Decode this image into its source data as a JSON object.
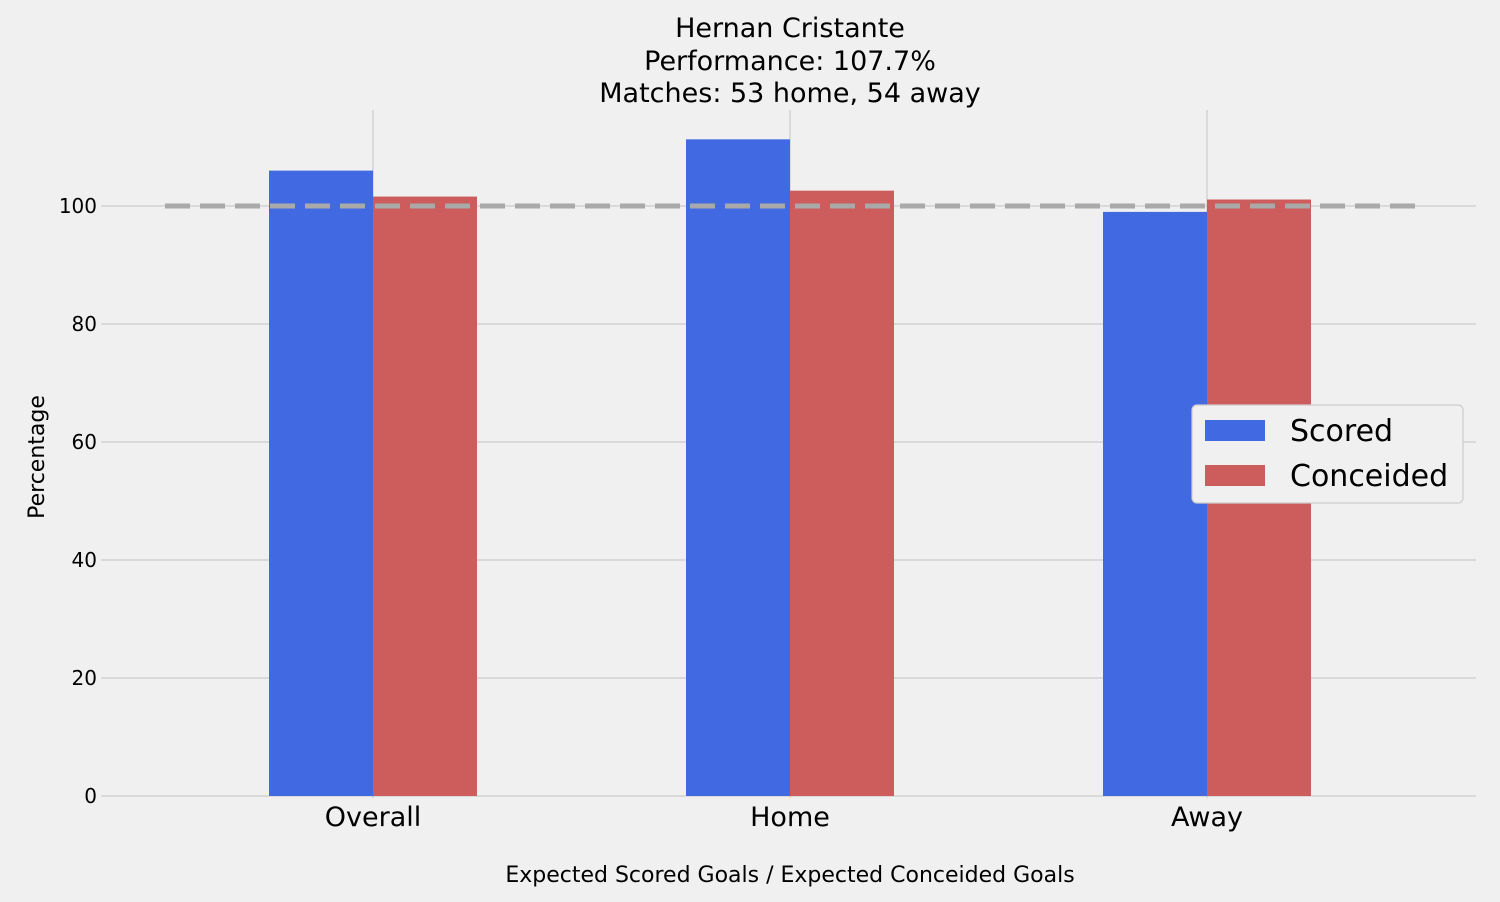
{
  "chart_data": {
    "type": "bar",
    "title": [
      "Hernan Cristante",
      "Performance: 107.7%",
      "Matches: 53 home, 54 away"
    ],
    "xlabel": "Expected Scored Goals / Expected Conceided Goals",
    "ylabel": "Percentage",
    "categories": [
      "Overall",
      "Home",
      "Away"
    ],
    "series": [
      {
        "name": "Scored",
        "values": [
          106.0,
          111.3,
          99.0
        ],
        "color": "#4169e1"
      },
      {
        "name": "Conceided",
        "values": [
          101.6,
          102.6,
          101.1
        ],
        "color": "#cd5c5c"
      }
    ],
    "yticks": [
      0,
      20,
      40,
      60,
      80,
      100
    ],
    "ylim": [
      0,
      116
    ],
    "reference_line": {
      "y": 100,
      "style": "dashed",
      "color": "#a9a9a9"
    },
    "grid": true,
    "legend": {
      "position": "center-right"
    },
    "background": "#f0f0f0",
    "grid_color": "#cbcbcb"
  }
}
